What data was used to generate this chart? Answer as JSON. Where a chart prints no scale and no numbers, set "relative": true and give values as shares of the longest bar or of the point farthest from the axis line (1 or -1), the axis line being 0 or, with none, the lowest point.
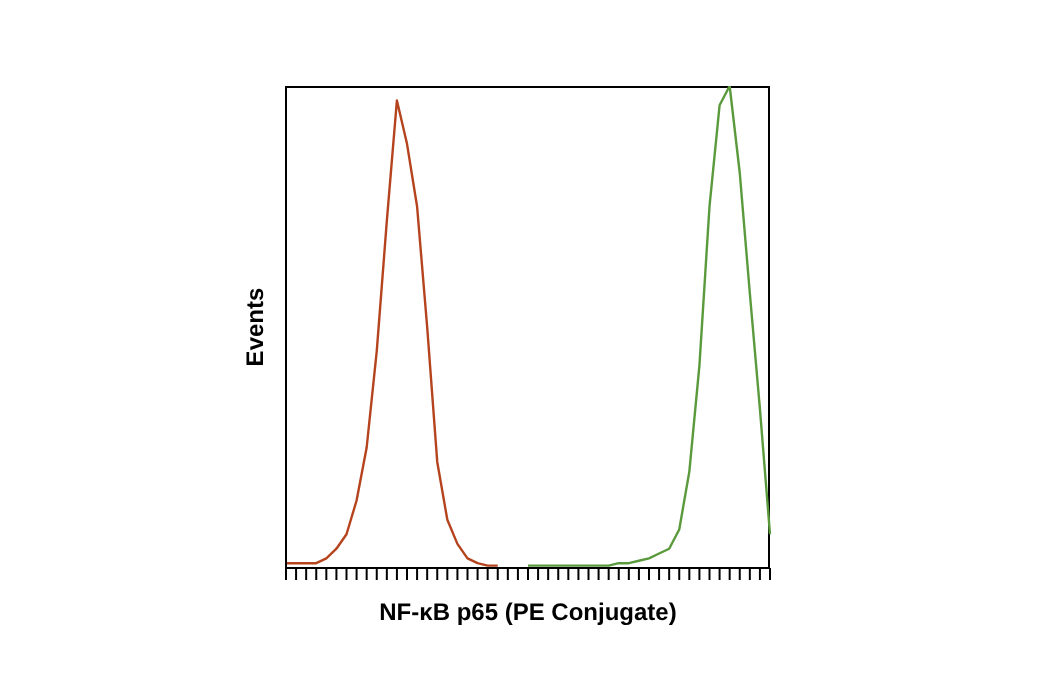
{
  "chart_data": {
    "type": "line",
    "relative": true,
    "xlabel": "NF-κB p65 (PE Conjugate)",
    "ylabel": "Events",
    "marker": "none",
    "categories": [
      null,
      null,
      null,
      null,
      null,
      null,
      null,
      null,
      null,
      null,
      null,
      null,
      null,
      null,
      null,
      null,
      null,
      null,
      null,
      null,
      null,
      null,
      null,
      null,
      null,
      null,
      null,
      null,
      null,
      null,
      null,
      null,
      null,
      null,
      null,
      null,
      null,
      null,
      null,
      null,
      null,
      null,
      null,
      null,
      null,
      null,
      null,
      null,
      null
    ],
    "series": [
      {
        "color": "#b5441e",
        "values": [
          0.01,
          0.01,
          0.01,
          0.01,
          0.02,
          0.04,
          0.07,
          0.14,
          0.25,
          0.45,
          0.72,
          0.97,
          0.88,
          0.75,
          0.5,
          0.22,
          0.1,
          0.05,
          0.02,
          0.01,
          0.005,
          0.005,
          null,
          null,
          null,
          null,
          null,
          null,
          null,
          null,
          null,
          null,
          null,
          null,
          null,
          null,
          null,
          null,
          null,
          null,
          null,
          null,
          null,
          null,
          null,
          null,
          null,
          null,
          null
        ]
      },
      {
        "color": "#5a9a3c",
        "values": [
          null,
          null,
          null,
          null,
          null,
          null,
          null,
          null,
          null,
          null,
          null,
          null,
          null,
          null,
          null,
          null,
          null,
          null,
          null,
          null,
          null,
          null,
          null,
          null,
          0.005,
          0.005,
          0.005,
          0.005,
          0.005,
          0.005,
          0.005,
          0.005,
          0.005,
          0.01,
          0.01,
          0.015,
          0.02,
          0.03,
          0.04,
          0.08,
          0.2,
          0.42,
          0.75,
          0.96,
          1,
          0.82,
          0.57,
          0.33,
          0.07
        ]
      }
    ]
  }
}
